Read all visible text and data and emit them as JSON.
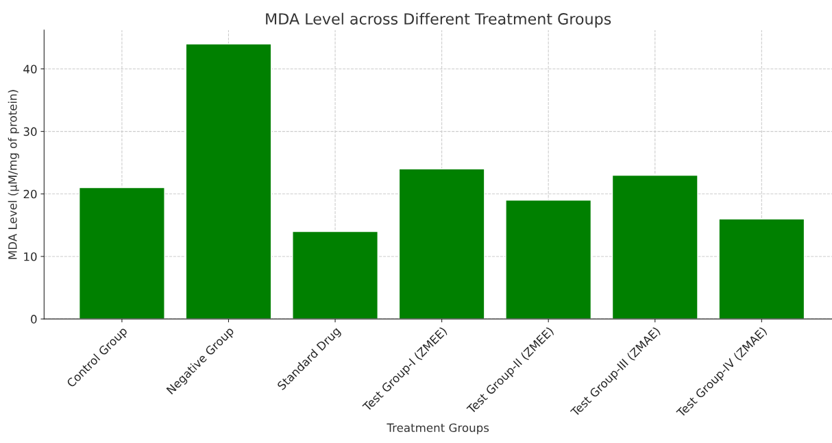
{
  "chart_data": {
    "type": "bar",
    "title": "MDA Level across Different Treatment Groups",
    "xlabel": "Treatment Groups",
    "ylabel": "MDA Level (µM/mg of protein)",
    "categories": [
      "Control Group",
      "Negative Group",
      "Standard Drug",
      "Test Group-I (ZMEE)",
      "Test Group-II (ZMEE)",
      "Test Group-III (ZMAE)",
      "Test Group-IV (ZMAE)"
    ],
    "values": [
      21,
      44,
      14,
      24,
      19,
      23,
      16
    ],
    "color": "#008000",
    "ylim": [
      0,
      46.2
    ],
    "yticks": [
      0,
      10,
      20,
      30,
      40
    ],
    "grid": true
  }
}
